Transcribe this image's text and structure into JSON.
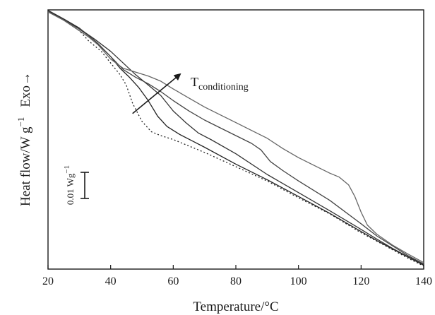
{
  "chart_data": {
    "type": "line",
    "xlabel": "Temperature/°C",
    "ylabel": {
      "main": "Heat flow/W g",
      "sup": "−1",
      "exo": "Exo→"
    },
    "xlim": [
      20,
      140
    ],
    "ylim": [
      0,
      100
    ],
    "xticks": [
      20,
      40,
      60,
      80,
      100,
      120,
      140
    ],
    "grid": false,
    "annotation": {
      "main": "T",
      "sub": "conditioning",
      "arrow_from": {
        "x": 47,
        "y": 60
      },
      "arrow_to": {
        "x": 62,
        "y": 75
      }
    },
    "scale_bar": {
      "label": "0.01 Wg",
      "sup": "−1"
    },
    "series": [
      {
        "dashed": true,
        "color": "#222222",
        "x": [
          20,
          25,
          30,
          33,
          37,
          40,
          43,
          45,
          47,
          50,
          53,
          56,
          60,
          65,
          70,
          80,
          90,
          100,
          110,
          120,
          125,
          130,
          135,
          140
        ],
        "y": [
          99.5,
          96,
          92,
          88,
          84,
          79.5,
          75,
          71,
          64,
          57,
          53,
          51.5,
          50,
          47.5,
          45,
          39.5,
          34,
          27.5,
          21.3,
          14,
          10.8,
          7.5,
          4.2,
          1.2
        ]
      },
      {
        "dashed": false,
        "color": "#222222",
        "x": [
          20,
          25,
          30,
          35,
          40,
          43,
          46,
          49,
          52,
          55,
          58,
          62,
          66,
          70,
          80,
          90,
          100,
          110,
          120,
          125,
          130,
          135,
          140
        ],
        "y": [
          99.8,
          96.5,
          93,
          88,
          82,
          77.5,
          74,
          70,
          65,
          59,
          55,
          52,
          49.5,
          47,
          40.5,
          34.5,
          28,
          21.5,
          14.5,
          11,
          7.8,
          4.6,
          1.5
        ]
      },
      {
        "dashed": false,
        "color": "#333333",
        "x": [
          20,
          25,
          30,
          35,
          40,
          44,
          48,
          52,
          56,
          60,
          64,
          68,
          72,
          80,
          90,
          100,
          110,
          120,
          125,
          130,
          135,
          140
        ],
        "y": [
          99.6,
          96.3,
          92.8,
          88.6,
          84,
          79.5,
          75,
          71,
          67,
          61,
          56.5,
          52.5,
          50,
          44.5,
          36.5,
          29.5,
          22.5,
          15.3,
          11.6,
          8,
          4.8,
          1.8
        ]
      },
      {
        "dashed": false,
        "color": "#444444",
        "x": [
          20,
          25,
          30,
          33,
          36,
          40,
          44,
          48,
          52,
          56,
          60,
          65,
          70,
          75,
          80,
          85,
          88,
          91,
          95,
          100,
          110,
          120,
          125,
          130,
          135,
          140
        ],
        "y": [
          99.4,
          96.2,
          92.6,
          90,
          87,
          82,
          77,
          74,
          71.5,
          68.5,
          65,
          61,
          57.5,
          54.5,
          51.5,
          48.5,
          46,
          41.5,
          38,
          34,
          26.5,
          17.5,
          12.8,
          9,
          5.2,
          2
        ]
      },
      {
        "dashed": false,
        "color": "#666666",
        "x": [
          20,
          25,
          30,
          33,
          36,
          40,
          44,
          48,
          52,
          56,
          60,
          65,
          70,
          75,
          80,
          85,
          90,
          95,
          100,
          105,
          110,
          113,
          116,
          118,
          120,
          122,
          125,
          130,
          135,
          140
        ],
        "y": [
          99.2,
          96,
          92,
          89.5,
          86.5,
          81,
          77.5,
          76,
          74.5,
          72.5,
          69.5,
          66,
          62.5,
          59.5,
          56.5,
          53.5,
          50.5,
          46.5,
          43,
          40,
          37,
          35.5,
          32.5,
          28,
          22,
          17,
          13.5,
          9.3,
          5.8,
          2.5
        ]
      }
    ]
  }
}
